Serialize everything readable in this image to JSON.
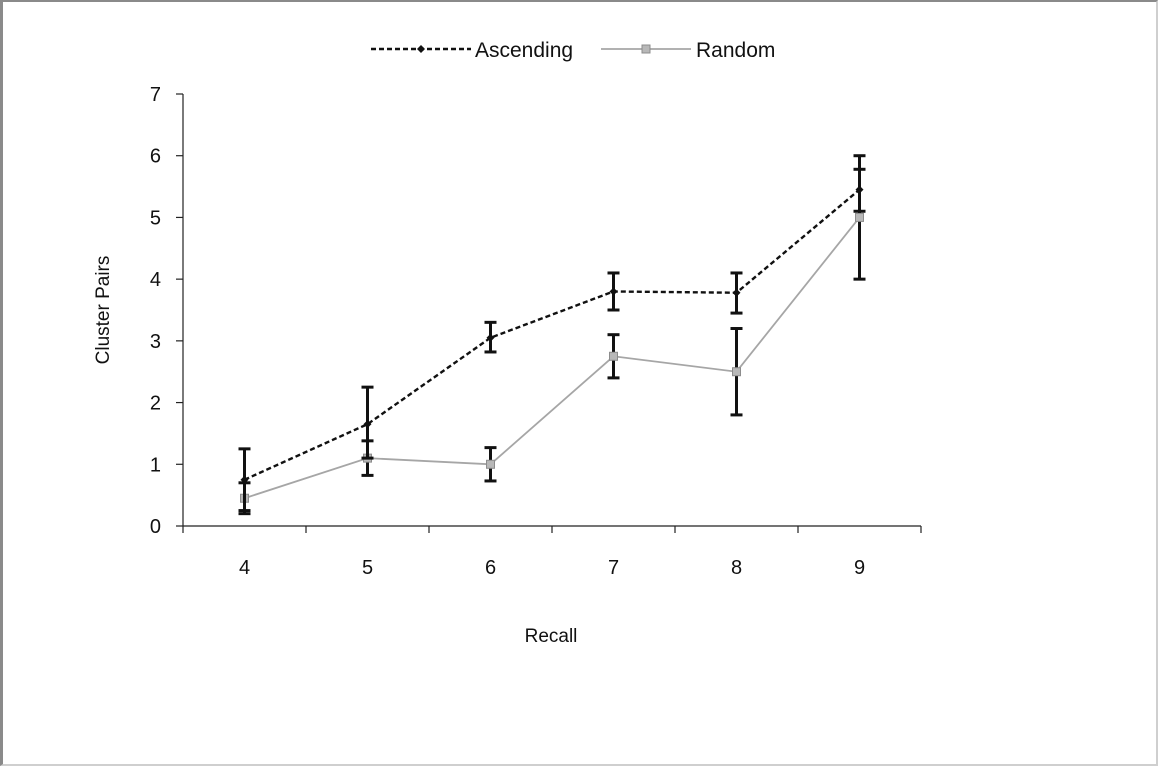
{
  "chart_data": {
    "type": "line",
    "title": "",
    "xlabel": "Recall",
    "ylabel": "Cluster Pairs",
    "categories": [
      "4",
      "5",
      "6",
      "7",
      "8",
      "9"
    ],
    "ylim": [
      0,
      7
    ],
    "yticks": [
      "0",
      "1",
      "2",
      "3",
      "4",
      "5",
      "6",
      "7"
    ],
    "grid": false,
    "legend_position": "top",
    "series": [
      {
        "name": "Ascending",
        "line_style": "dashed",
        "marker": "diamond",
        "color": "#111111",
        "values": [
          0.75,
          1.65,
          3.05,
          3.8,
          3.78,
          5.45
        ],
        "error_low": [
          0.25,
          1.1,
          2.82,
          3.5,
          3.45,
          5.1
        ],
        "error_high": [
          1.25,
          2.25,
          3.3,
          4.1,
          4.1,
          6.0
        ]
      },
      {
        "name": "Random",
        "line_style": "solid",
        "marker": "square",
        "color": "#a6a6a6",
        "values": [
          0.45,
          1.1,
          1.0,
          2.75,
          2.5,
          5.0
        ],
        "error_low": [
          0.2,
          0.82,
          0.73,
          2.4,
          1.8,
          4.0
        ],
        "error_high": [
          0.7,
          1.38,
          1.27,
          3.1,
          3.2,
          5.78
        ]
      }
    ]
  }
}
